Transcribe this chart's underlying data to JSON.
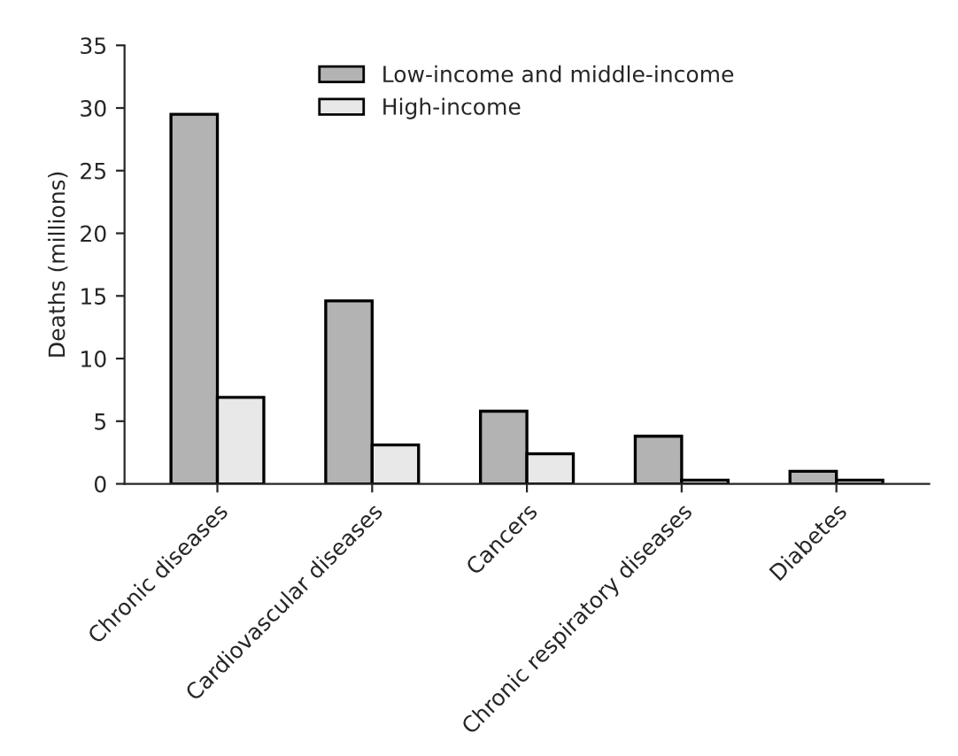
{
  "chart_data": {
    "type": "bar",
    "ylabel": "Deaths (millions)",
    "categories": [
      "Chronic diseases",
      "Cardiovascular diseases",
      "Cancers",
      "Chronic respiratory diseases",
      "Diabetes"
    ],
    "series": [
      {
        "name": "Low-income and middle-income",
        "color": "#b3b3b3",
        "values": [
          29.5,
          14.6,
          5.8,
          3.8,
          1.0
        ]
      },
      {
        "name": "High-income",
        "color": "#e8e8e8",
        "values": [
          6.9,
          3.1,
          2.4,
          0.3,
          0.3
        ]
      }
    ],
    "ylim": [
      0,
      35
    ],
    "yticks": [
      0,
      5,
      10,
      15,
      20,
      25,
      30,
      35
    ],
    "grid": false,
    "legend": "top"
  }
}
